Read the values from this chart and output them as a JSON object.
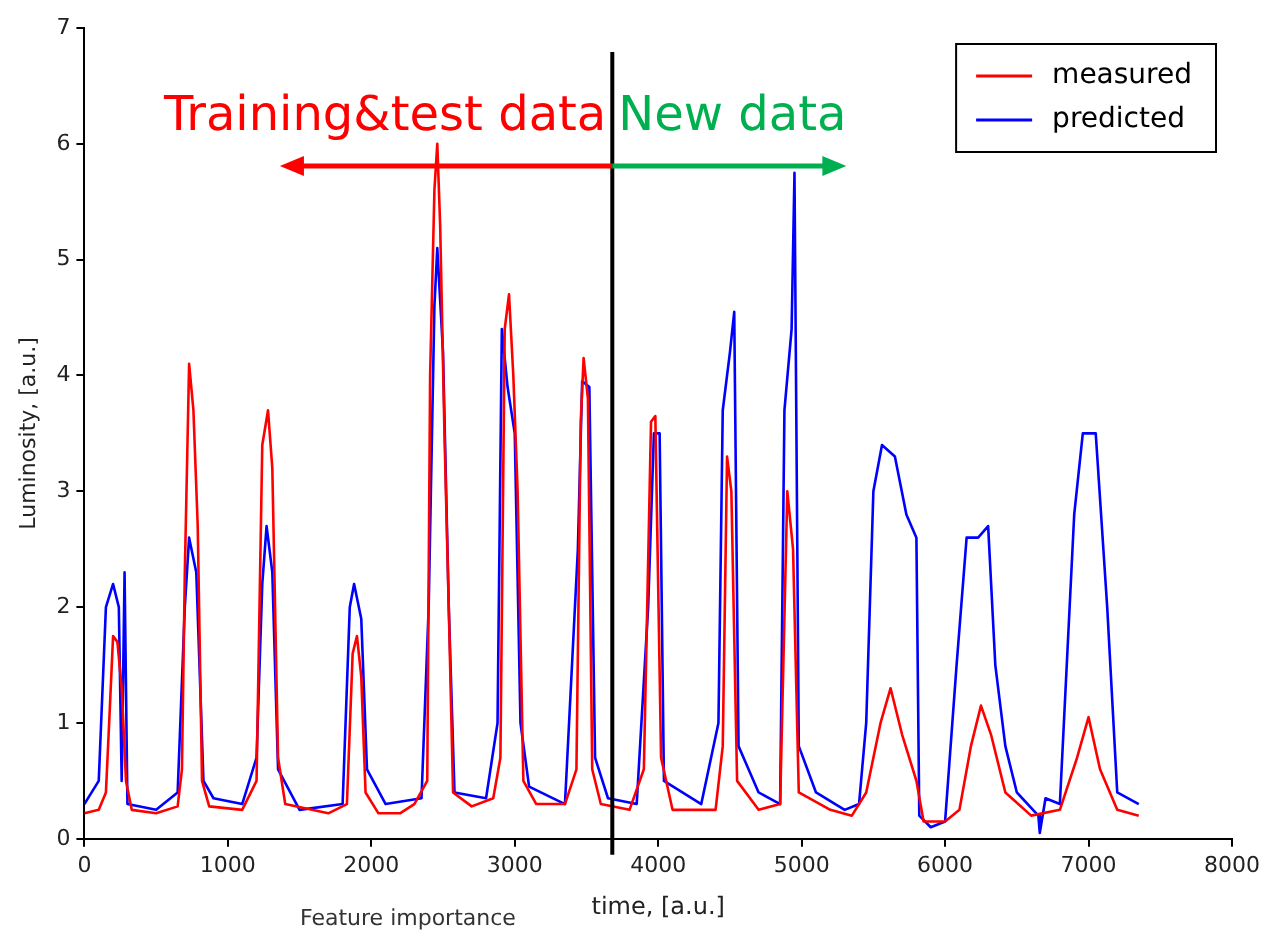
{
  "chart_data": {
    "type": "line",
    "xlabel": "time, [a.u.]",
    "ylabel": "Luminosity, [a.u.]",
    "xlim": [
      0,
      8000
    ],
    "xticks": [
      0,
      1000,
      2000,
      3000,
      4000,
      5000,
      6000,
      7000,
      8000
    ],
    "ylim": [
      0,
      7
    ],
    "yticks": [
      0,
      1,
      2,
      3,
      4,
      5,
      6,
      7
    ],
    "grid": false,
    "legend": "top right",
    "marker": "none",
    "line_style": "solid",
    "ref_lines": [
      {
        "axis": "x",
        "value": 3680,
        "color": "#000000"
      }
    ],
    "annotations": [
      "Training&test data",
      "New data",
      "Feature importance"
    ],
    "series": [
      {
        "name": "measured",
        "color": "#ff0000",
        "x": [
          0,
          100,
          150,
          180,
          200,
          230,
          260,
          290,
          330,
          500,
          650,
          680,
          700,
          730,
          760,
          790,
          820,
          870,
          1100,
          1200,
          1240,
          1280,
          1310,
          1350,
          1400,
          1700,
          1830,
          1870,
          1900,
          1930,
          1960,
          2050,
          2200,
          2300,
          2390,
          2410,
          2440,
          2460,
          2480,
          2510,
          2540,
          2570,
          2700,
          2850,
          2900,
          2930,
          2960,
          2990,
          3020,
          3060,
          3150,
          3350,
          3430,
          3460,
          3480,
          3510,
          3540,
          3600,
          3800,
          3900,
          3950,
          3980,
          4020,
          4100,
          4400,
          4450,
          4480,
          4510,
          4550,
          4700,
          4850,
          4900,
          4940,
          4980,
          5200,
          5350,
          5450,
          5550,
          5620,
          5700,
          5800,
          5850,
          6000,
          6100,
          6180,
          6250,
          6320,
          6420,
          6600,
          6800,
          6920,
          7000,
          7080,
          7200,
          7350
        ],
        "values": [
          0.22,
          0.25,
          0.4,
          1.2,
          1.75,
          1.7,
          1.3,
          0.5,
          0.25,
          0.22,
          0.28,
          0.6,
          2.3,
          4.1,
          3.7,
          2.7,
          0.5,
          0.28,
          0.25,
          0.5,
          3.4,
          3.7,
          3.2,
          0.7,
          0.3,
          0.22,
          0.3,
          1.6,
          1.75,
          1.4,
          0.4,
          0.22,
          0.22,
          0.3,
          0.5,
          4.0,
          5.6,
          6.0,
          5.3,
          3.5,
          2.0,
          0.4,
          0.28,
          0.35,
          0.7,
          4.4,
          4.7,
          4.0,
          3.0,
          0.5,
          0.3,
          0.3,
          0.6,
          3.6,
          4.15,
          3.8,
          0.6,
          0.3,
          0.25,
          0.6,
          3.6,
          3.65,
          0.7,
          0.25,
          0.25,
          0.8,
          3.3,
          3.0,
          0.5,
          0.25,
          0.3,
          3.0,
          2.5,
          0.4,
          0.25,
          0.2,
          0.4,
          1.0,
          1.3,
          0.9,
          0.5,
          0.15,
          0.15,
          0.25,
          0.8,
          1.15,
          0.9,
          0.4,
          0.2,
          0.25,
          0.7,
          1.05,
          0.6,
          0.25,
          0.2
        ]
      },
      {
        "name": "predicted",
        "color": "#0000ff",
        "x": [
          0,
          100,
          150,
          200,
          240,
          260,
          280,
          300,
          500,
          650,
          700,
          730,
          780,
          830,
          900,
          1100,
          1200,
          1240,
          1270,
          1310,
          1350,
          1500,
          1800,
          1850,
          1880,
          1930,
          1970,
          2100,
          2350,
          2400,
          2440,
          2460,
          2500,
          2540,
          2580,
          2800,
          2880,
          2910,
          2950,
          3000,
          3040,
          3100,
          3350,
          3440,
          3470,
          3520,
          3560,
          3650,
          3850,
          3930,
          3970,
          4010,
          4040,
          4300,
          4420,
          4450,
          4500,
          4530,
          4560,
          4700,
          4850,
          4880,
          4930,
          4950,
          4980,
          5100,
          5300,
          5400,
          5450,
          5500,
          5560,
          5650,
          5730,
          5800,
          5820,
          5900,
          6000,
          6080,
          6150,
          6230,
          6300,
          6350,
          6420,
          6500,
          6650,
          6660,
          6700,
          6800,
          6900,
          6960,
          7050,
          7130,
          7200,
          7350
        ],
        "values": [
          0.3,
          0.5,
          2.0,
          2.2,
          2.0,
          0.5,
          2.3,
          0.3,
          0.25,
          0.4,
          2.0,
          2.6,
          2.3,
          0.5,
          0.35,
          0.3,
          0.7,
          2.2,
          2.7,
          2.3,
          0.6,
          0.25,
          0.3,
          2.0,
          2.2,
          1.9,
          0.6,
          0.3,
          0.35,
          2.0,
          4.6,
          5.1,
          4.2,
          2.0,
          0.4,
          0.35,
          1.0,
          4.4,
          3.9,
          3.5,
          1.0,
          0.45,
          0.3,
          2.5,
          3.95,
          3.9,
          0.7,
          0.35,
          0.3,
          2.0,
          3.5,
          3.5,
          0.5,
          0.3,
          1.0,
          3.7,
          4.2,
          4.55,
          0.8,
          0.4,
          0.3,
          3.7,
          4.4,
          5.75,
          0.8,
          0.4,
          0.25,
          0.3,
          1.0,
          3.0,
          3.4,
          3.3,
          2.8,
          2.6,
          0.2,
          0.1,
          0.15,
          1.5,
          2.6,
          2.6,
          2.7,
          1.5,
          0.8,
          0.4,
          0.2,
          0.05,
          0.35,
          0.3,
          2.8,
          3.5,
          3.5,
          2.0,
          0.4,
          0.3
        ]
      }
    ]
  }
}
